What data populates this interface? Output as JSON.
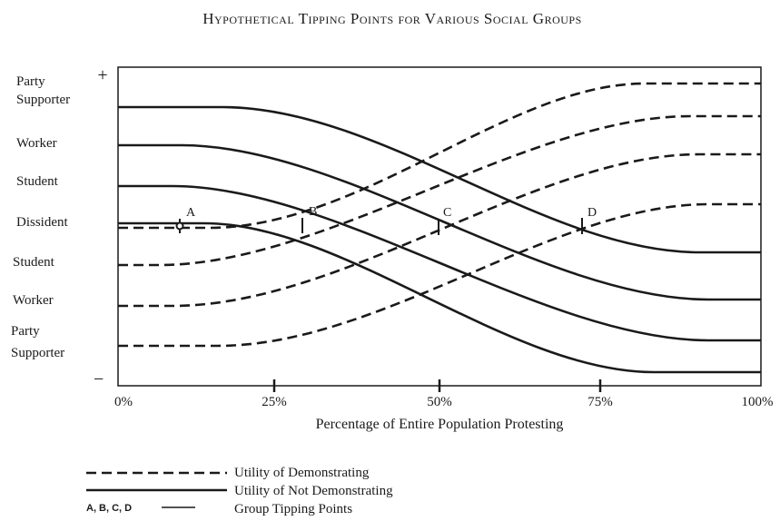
{
  "title": "Hypothetical Tipping Points for Various Social Groups",
  "y_axis": {
    "top": "+",
    "bottom": "−",
    "labels": [
      [
        "Party",
        "Supporter"
      ],
      [
        "Worker"
      ],
      [
        "Student"
      ],
      [
        "Dissident"
      ],
      [
        "Student"
      ],
      [
        "Worker"
      ],
      [
        "Party",
        "Supporter"
      ]
    ]
  },
  "x_axis": {
    "ticks": [
      "0%",
      "25%",
      "50%",
      "75%",
      "100%"
    ],
    "label": "Percentage of Entire Population Protesting"
  },
  "points": [
    "A",
    "B",
    "C",
    "D"
  ],
  "legend": [
    "Utility of Demonstrating",
    "Utility of Not Demonstrating",
    "A, B, C, D",
    "Group Tipping Points"
  ]
}
